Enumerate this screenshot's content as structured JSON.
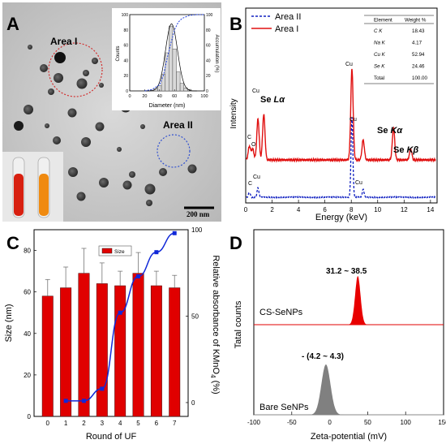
{
  "chart_data": [
    {
      "panel": "A",
      "type": "micrograph",
      "labels": {
        "area1": "Area I",
        "area2": "Area II",
        "scale_bar": "200 nm"
      },
      "inset_histogram": {
        "type": "bar",
        "xlabel": "Diameter (nm)",
        "ylabel_left": "Counts",
        "ylabel_right": "Accumulation (%)",
        "xlim": [
          0,
          100
        ],
        "ylim_left": [
          0,
          100
        ],
        "ylim_right": [
          0,
          100
        ],
        "xticks": [
          "0",
          "20",
          "40",
          "60",
          "80",
          "100"
        ],
        "yticks_left": [
          "0",
          "20",
          "40",
          "60",
          "80",
          "100"
        ],
        "yticks_right": [
          "0",
          "20",
          "40",
          "60",
          "80",
          "100"
        ],
        "bins_x": [
          30,
          35,
          40,
          45,
          50,
          55,
          60,
          65,
          70,
          75,
          80
        ],
        "counts": [
          1,
          3,
          7,
          22,
          50,
          85,
          55,
          25,
          10,
          4,
          2
        ],
        "cumulative_x": [
          20,
          30,
          40,
          45,
          50,
          55,
          60,
          65,
          70,
          80,
          90,
          100
        ],
        "cumulative_y": [
          0,
          2,
          8,
          20,
          42,
          62,
          80,
          90,
          95,
          99,
          100,
          100
        ]
      }
    },
    {
      "panel": "B",
      "type": "line",
      "xlabel": "Energy (keV)",
      "ylabel": "Intensity",
      "xlim": [
        0,
        14.5
      ],
      "xticks": [
        "0",
        "2",
        "4",
        "6",
        "8",
        "10",
        "12",
        "14"
      ],
      "legend": [
        "Area II",
        "Area I"
      ],
      "peak_labels": {
        "cu": "Cu",
        "c": "C",
        "o": "O",
        "se_la": "Se",
        "se_la_greek": "Lα",
        "se_ka": "Se",
        "se_ka_greek": "Kα",
        "se_kb": "Se",
        "se_kb_greek": "Kβ"
      },
      "series": [
        {
          "name": "Area I",
          "x": [
            0.28,
            0.53,
            0.93,
            1.37,
            8.05,
            8.9,
            11.2,
            12.5
          ],
          "y": [
            15,
            12,
            45,
            50,
            100,
            22,
            35,
            12
          ]
        },
        {
          "name": "Area II",
          "x": [
            0.28,
            0.93,
            8.05,
            8.9
          ],
          "y": [
            6,
            12,
            100,
            10
          ]
        }
      ],
      "table": {
        "headers": [
          "Element",
          "Weight %"
        ],
        "rows": [
          [
            "C K",
            "18.43"
          ],
          [
            "Na K",
            "4.17"
          ],
          [
            "Cu K",
            "52.94"
          ],
          [
            "Se K",
            "24.46"
          ],
          [
            "Total",
            "100.00"
          ]
        ]
      }
    },
    {
      "panel": "C",
      "type": "bar",
      "xlabel": "Round of UF",
      "ylabel": "Size (nm)",
      "ylabel_right_pre": "Relative absorbance of KMnO",
      "ylabel_right_sub": "4",
      "ylabel_right_post": " (%)",
      "categories": [
        "0",
        "1",
        "2",
        "3",
        "4",
        "5",
        "6",
        "7"
      ],
      "ylim": [
        0,
        90
      ],
      "ylim_right": [
        -8,
        100
      ],
      "yticks": [
        "0",
        "20",
        "40",
        "60",
        "80"
      ],
      "yticks_right": [
        "0",
        "50",
        "100"
      ],
      "legend": "Size",
      "series": [
        {
          "name": "Size",
          "values": [
            58,
            62,
            69,
            64,
            63,
            69,
            63,
            62
          ],
          "errors": [
            8,
            10,
            12,
            10,
            7,
            10,
            7,
            6
          ]
        },
        {
          "name": "",
          "x": [
            "1",
            "2",
            "3",
            "4",
            "5",
            "6",
            "7"
          ],
          "values": [
            1,
            1,
            8,
            52,
            73,
            87,
            98
          ]
        }
      ]
    },
    {
      "panel": "D",
      "type": "area",
      "xlabel": "Zeta-potential (mV)",
      "ylabel": "Tatal counts",
      "xlim": [
        -100,
        150
      ],
      "xticks": [
        "-100",
        "-50",
        "0",
        "50",
        "100",
        "150"
      ],
      "series": [
        {
          "name": "CS-SeNPs",
          "range_label": "31.2 ~ 38.5",
          "peak": 37,
          "width": 6,
          "color": "#e80000"
        },
        {
          "name": "Bare SeNPs",
          "range_label": "- (4.2 ~ 4.3)",
          "peak": -5,
          "width": 10,
          "color": "#808080"
        }
      ]
    }
  ],
  "panel_letters": {
    "a": "A",
    "b": "B",
    "c": "C",
    "d": "D"
  }
}
